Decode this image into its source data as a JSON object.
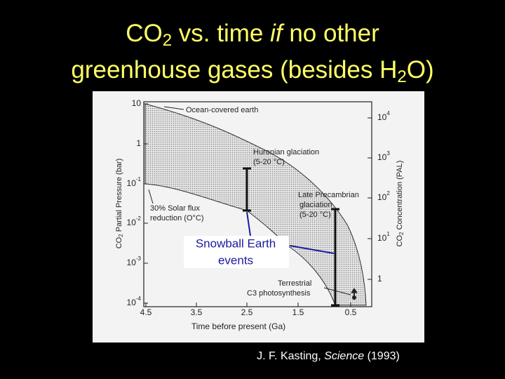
{
  "title": {
    "line1": [
      "CO",
      "2",
      " vs. time ",
      "if",
      " no other"
    ],
    "line2": [
      "greenhouse gases (besides H",
      "2",
      "O)"
    ]
  },
  "figure": {
    "y_axis_left": {
      "title": [
        "CO",
        "2",
        " Partial Pressure (bar)"
      ],
      "ticks": [
        {
          "base": "10"
        },
        {
          "base": "1"
        },
        {
          "base": "10",
          "exp": "-1"
        },
        {
          "base": "10",
          "exp": "-2"
        },
        {
          "base": "10",
          "exp": "-3"
        },
        {
          "base": "10",
          "exp": "-4"
        }
      ]
    },
    "y_axis_right": {
      "title": [
        "CO",
        "2",
        " Concentration (PAL)"
      ],
      "ticks": [
        {
          "base": "10",
          "exp": "4"
        },
        {
          "base": "10",
          "exp": "3"
        },
        {
          "base": "10",
          "exp": "2"
        },
        {
          "base": "10",
          "exp": "1"
        },
        {
          "base": "1"
        }
      ]
    },
    "x_axis": {
      "title": "Time before present (Ga)",
      "ticks": [
        "4.5",
        "3.5",
        "2.5",
        "1.5",
        "0.5"
      ]
    },
    "annotations": [
      {
        "lines": [
          "Ocean-covered earth"
        ]
      },
      {
        "lines": [
          "Huronian glaciation",
          "(5-20 °C)"
        ]
      },
      {
        "lines": [
          "Late Precambrian",
          "glaciation",
          "(5-20 °C)"
        ]
      },
      {
        "lines": [
          "30% Solar flux",
          "reduction (O°C)"
        ]
      },
      {
        "lines": [
          "Terrestrial",
          "C3 photosynthesis"
        ]
      }
    ],
    "callout": {
      "lines": [
        "Snowball Earth",
        "events"
      ]
    }
  },
  "citation": [
    "J. F. Kasting, ",
    "Science",
    " (1993)"
  ]
}
